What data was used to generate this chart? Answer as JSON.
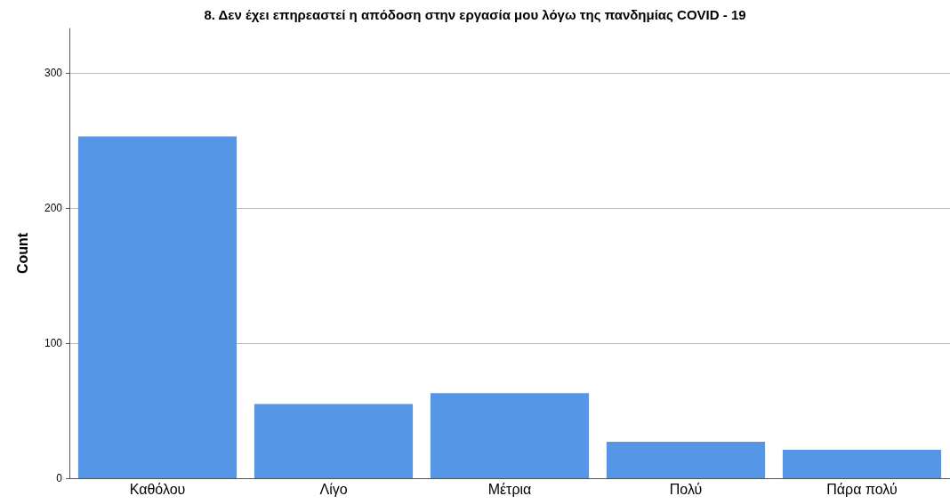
{
  "chart_data": {
    "type": "bar",
    "title": "8. Δεν έχει επηρεαστεί η απόδοση στην εργασία μου λόγω της πανδημίας COVID - 19",
    "ylabel": "Count",
    "categories": [
      "Καθόλου",
      "Λίγο",
      "Μέτρια",
      "Πολύ",
      "Πάρα πολύ"
    ],
    "values": [
      253,
      55,
      63,
      27,
      21
    ],
    "color": "#5596e6",
    "ylim": [
      0,
      333
    ],
    "yticks": [
      0,
      100,
      200,
      300
    ],
    "grid": "y"
  }
}
